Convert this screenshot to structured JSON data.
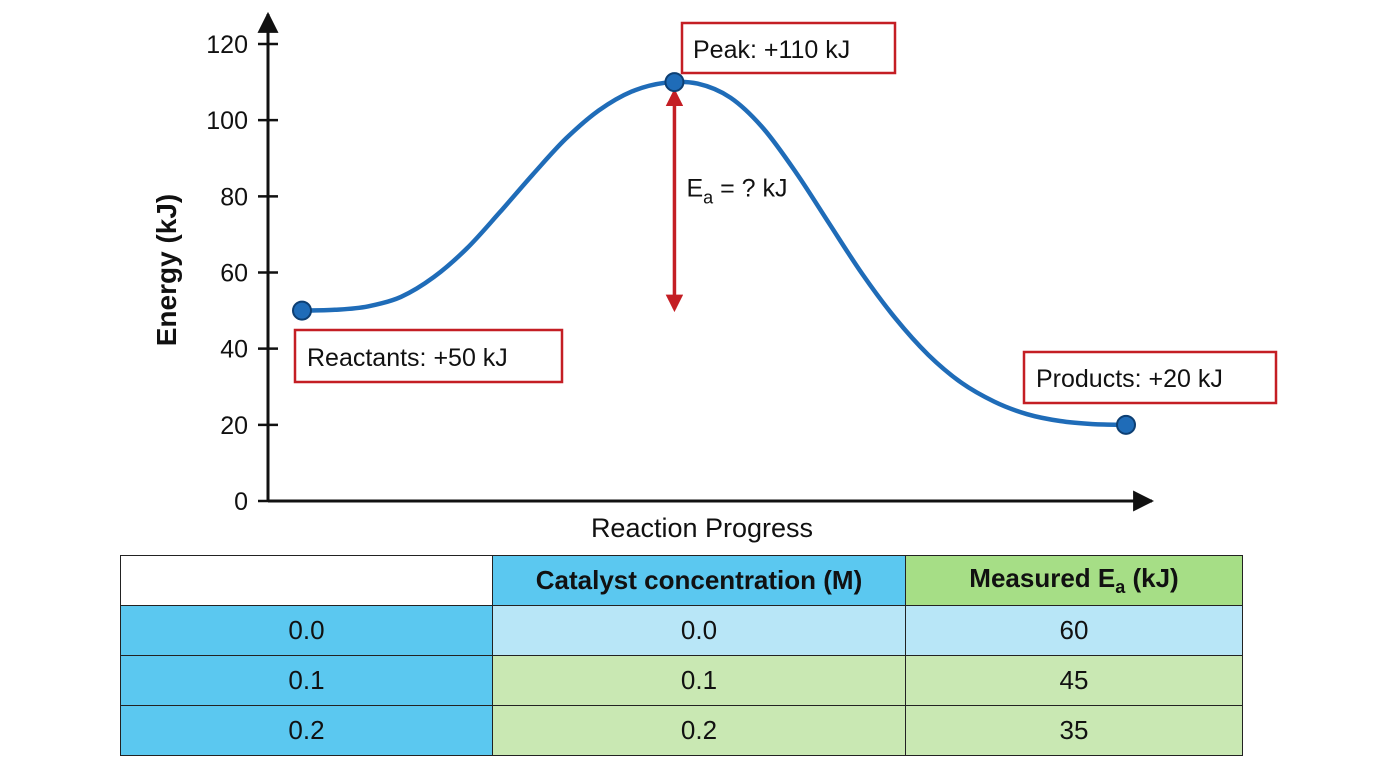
{
  "chart_data": {
    "type": "line",
    "title": "",
    "xlabel": "Reaction Progress",
    "ylabel": "Energy (kJ)",
    "ylim": [
      0,
      120
    ],
    "yticks": [
      0,
      20,
      40,
      60,
      80,
      100,
      120
    ],
    "xlim": [
      0,
      100
    ],
    "grid": false,
    "series": [
      {
        "x": [
          0,
          4,
          8,
          12,
          16,
          20,
          24,
          28,
          32,
          36,
          40,
          44,
          48,
          52,
          56,
          60,
          64,
          68,
          72,
          76,
          80,
          84,
          88,
          92,
          96,
          100
        ],
        "y": [
          50,
          50.2,
          51.1,
          53.6,
          58.8,
          66.3,
          75.8,
          85.7,
          95.1,
          102.5,
          107.5,
          109.8,
          109.6,
          105.9,
          97.8,
          86.1,
          72.8,
          59.6,
          48.0,
          38.4,
          31.1,
          26.1,
          22.8,
          21.0,
          20.2,
          20
        ]
      }
    ],
    "points": [
      {
        "x": 0,
        "y": 50
      },
      {
        "x": 45.2,
        "y": 110
      },
      {
        "x": 100,
        "y": 20
      }
    ],
    "annotations": [
      {
        "text": "Reactants: +50 kJ",
        "anchor_x": 0,
        "anchor_y": 50
      },
      {
        "text": "Peak: +110 kJ",
        "anchor_x": 45.2,
        "anchor_y": 110
      },
      {
        "text": "Products: +20 kJ",
        "anchor_x": 100,
        "anchor_y": 20
      }
    ],
    "ea_arrow": {
      "x": 45.2,
      "y_from": 50,
      "y_to": 110,
      "label_main": "E",
      "label_sub": "a",
      "label_rest": " = ? kJ"
    },
    "colors": {
      "curve": "#1f6cb8",
      "points": "#1f6cb8",
      "box_border": "#c41e24",
      "arrow": "#c41e24",
      "axis": "#111111"
    }
  },
  "table": {
    "header": {
      "col0": "",
      "col1": "Catalyst concentration (M)",
      "col2_main": "Measured E",
      "col2_sub": "a",
      "col2_rest": " (kJ)"
    },
    "rows": [
      {
        "label": "0.0",
        "concentration": "0.0",
        "ea": "60"
      },
      {
        "label": "0.1",
        "concentration": "0.1",
        "ea": "45"
      },
      {
        "label": "0.2",
        "concentration": "0.2",
        "ea": "35"
      }
    ],
    "colors": {
      "header_blue": "#5bc8f0",
      "header_green": "#a6de86",
      "row_light_blue": "#b8e6f7",
      "row_light_green": "#c9e8b3"
    }
  }
}
